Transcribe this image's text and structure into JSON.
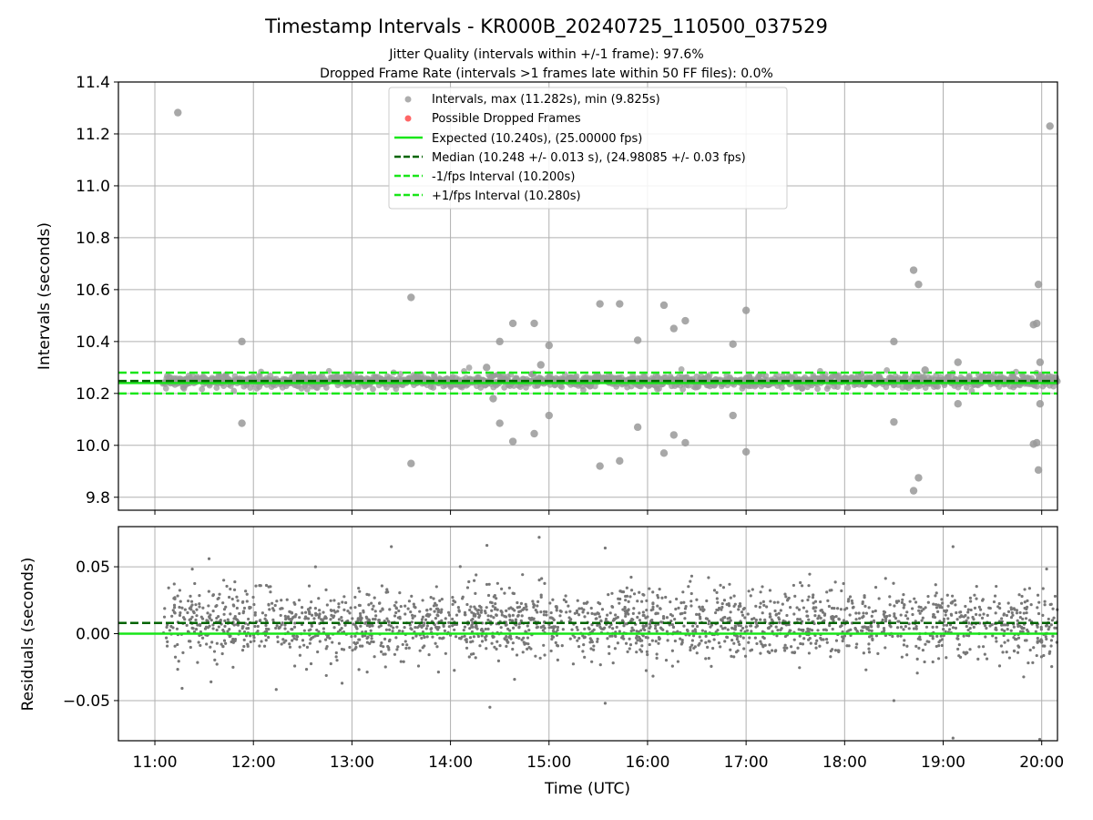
{
  "figure": {
    "title": "Timestamp Intervals - KR000B_20240725_110500_037529",
    "subtitle_1": "Jitter Quality (intervals within +/-1 frame): 97.6%",
    "subtitle_2": "Dropped Frame Rate (intervals >1 frames late within 50 FF files): 0.0%"
  },
  "colors": {
    "intervals": "#999999",
    "dropped": "#ff5555",
    "expected": "#19e619",
    "median": "#006400",
    "fps_interval": "#19e619",
    "residuals": "#777777",
    "grid": "#b0b0b0"
  },
  "chart_data": [
    {
      "type": "scatter",
      "name": "intervals-panel",
      "ylabel": "Intervals (seconds)",
      "xlabel": "",
      "ylim": [
        9.75,
        11.4
      ],
      "xlim_hours": [
        10.63,
        20.16
      ],
      "yticks": [
        "9.8",
        "10.0",
        "10.2",
        "10.4",
        "10.6",
        "10.8",
        "11.0",
        "11.2",
        "11.4"
      ],
      "ytick_values": [
        9.8,
        10.0,
        10.2,
        10.4,
        10.6,
        10.8,
        11.0,
        11.2,
        11.4
      ],
      "grid": true,
      "legend_position": "top-center",
      "legend": [
        {
          "label": "Intervals, max (11.282s), min (9.825s)",
          "kind": "dot",
          "color": "#999999"
        },
        {
          "label": "Possible Dropped Frames",
          "kind": "dot",
          "color": "#ff5555"
        },
        {
          "label": "Expected (10.240s), (25.00000 fps)",
          "kind": "solid",
          "color": "#19e619"
        },
        {
          "label": "Median (10.248 +/- 0.013 s), (24.98085 +/- 0.03 fps)",
          "kind": "dashed",
          "color": "#006400"
        },
        {
          "label": "-1/fps Interval (10.200s)",
          "kind": "dashed",
          "color": "#19e619"
        },
        {
          "label": "+1/fps Interval (10.280s)",
          "kind": "dashed",
          "color": "#19e619"
        }
      ],
      "reference_lines": {
        "expected": 10.24,
        "median": 10.248,
        "minus_fps": 10.2,
        "plus_fps": 10.28
      },
      "outliers": [
        {
          "x": "11:14",
          "y": 11.282
        },
        {
          "x": "20:05",
          "y": 11.23
        },
        {
          "x": "11:53",
          "y": 10.4
        },
        {
          "x": "11:53",
          "y": 10.085
        },
        {
          "x": "13:36",
          "y": 10.57
        },
        {
          "x": "13:36",
          "y": 9.93
        },
        {
          "x": "14:22",
          "y": 10.3
        },
        {
          "x": "14:26",
          "y": 10.18
        },
        {
          "x": "14:30",
          "y": 10.4
        },
        {
          "x": "14:30",
          "y": 10.085
        },
        {
          "x": "14:38",
          "y": 10.015
        },
        {
          "x": "14:38",
          "y": 10.47
        },
        {
          "x": "14:51",
          "y": 10.47
        },
        {
          "x": "14:51",
          "y": 10.045
        },
        {
          "x": "14:55",
          "y": 10.31
        },
        {
          "x": "15:00",
          "y": 10.385
        },
        {
          "x": "15:00",
          "y": 10.115
        },
        {
          "x": "15:31",
          "y": 10.545
        },
        {
          "x": "15:31",
          "y": 9.92
        },
        {
          "x": "15:43",
          "y": 10.545
        },
        {
          "x": "15:43",
          "y": 9.94
        },
        {
          "x": "15:54",
          "y": 10.405
        },
        {
          "x": "15:54",
          "y": 10.07
        },
        {
          "x": "16:10",
          "y": 10.54
        },
        {
          "x": "16:10",
          "y": 9.97
        },
        {
          "x": "16:16",
          "y": 10.45
        },
        {
          "x": "16:16",
          "y": 10.04
        },
        {
          "x": "16:23",
          "y": 10.48
        },
        {
          "x": "16:23",
          "y": 10.01
        },
        {
          "x": "16:52",
          "y": 10.39
        },
        {
          "x": "16:52",
          "y": 10.115
        },
        {
          "x": "17:00",
          "y": 10.52
        },
        {
          "x": "17:00",
          "y": 9.975
        },
        {
          "x": "18:30",
          "y": 10.4
        },
        {
          "x": "18:30",
          "y": 10.09
        },
        {
          "x": "18:42",
          "y": 10.675
        },
        {
          "x": "18:42",
          "y": 9.825
        },
        {
          "x": "18:45",
          "y": 10.62
        },
        {
          "x": "18:45",
          "y": 9.875
        },
        {
          "x": "18:49",
          "y": 10.29
        },
        {
          "x": "19:09",
          "y": 10.32
        },
        {
          "x": "19:09",
          "y": 10.16
        },
        {
          "x": "19:55",
          "y": 10.465
        },
        {
          "x": "19:55",
          "y": 10.005
        },
        {
          "x": "19:57",
          "y": 10.47
        },
        {
          "x": "19:57",
          "y": 10.01
        },
        {
          "x": "19:58",
          "y": 10.62
        },
        {
          "x": "19:58",
          "y": 9.905
        },
        {
          "x": "19:59",
          "y": 10.32
        },
        {
          "x": "19:59",
          "y": 10.16
        }
      ]
    },
    {
      "type": "scatter",
      "name": "residuals-panel",
      "ylabel": "Residuals (seconds)",
      "xlabel": "Time (UTC)",
      "ylim": [
        -0.08,
        0.08
      ],
      "xlim_hours": [
        10.63,
        20.16
      ],
      "yticks": [
        "−0.05",
        "0.00",
        "0.05"
      ],
      "ytick_values": [
        -0.05,
        0.0,
        0.05
      ],
      "xticks": [
        "11:00",
        "12:00",
        "13:00",
        "14:00",
        "15:00",
        "16:00",
        "17:00",
        "18:00",
        "19:00",
        "20:00"
      ],
      "xtick_hours": [
        11,
        12,
        13,
        14,
        15,
        16,
        17,
        18,
        19,
        20
      ],
      "grid": true,
      "reference_lines": {
        "expected": 0.0,
        "median": 0.008
      },
      "data_range_hours": [
        11.08,
        20.16
      ],
      "residual_center": 0.008,
      "residual_spread": 0.013
    }
  ]
}
